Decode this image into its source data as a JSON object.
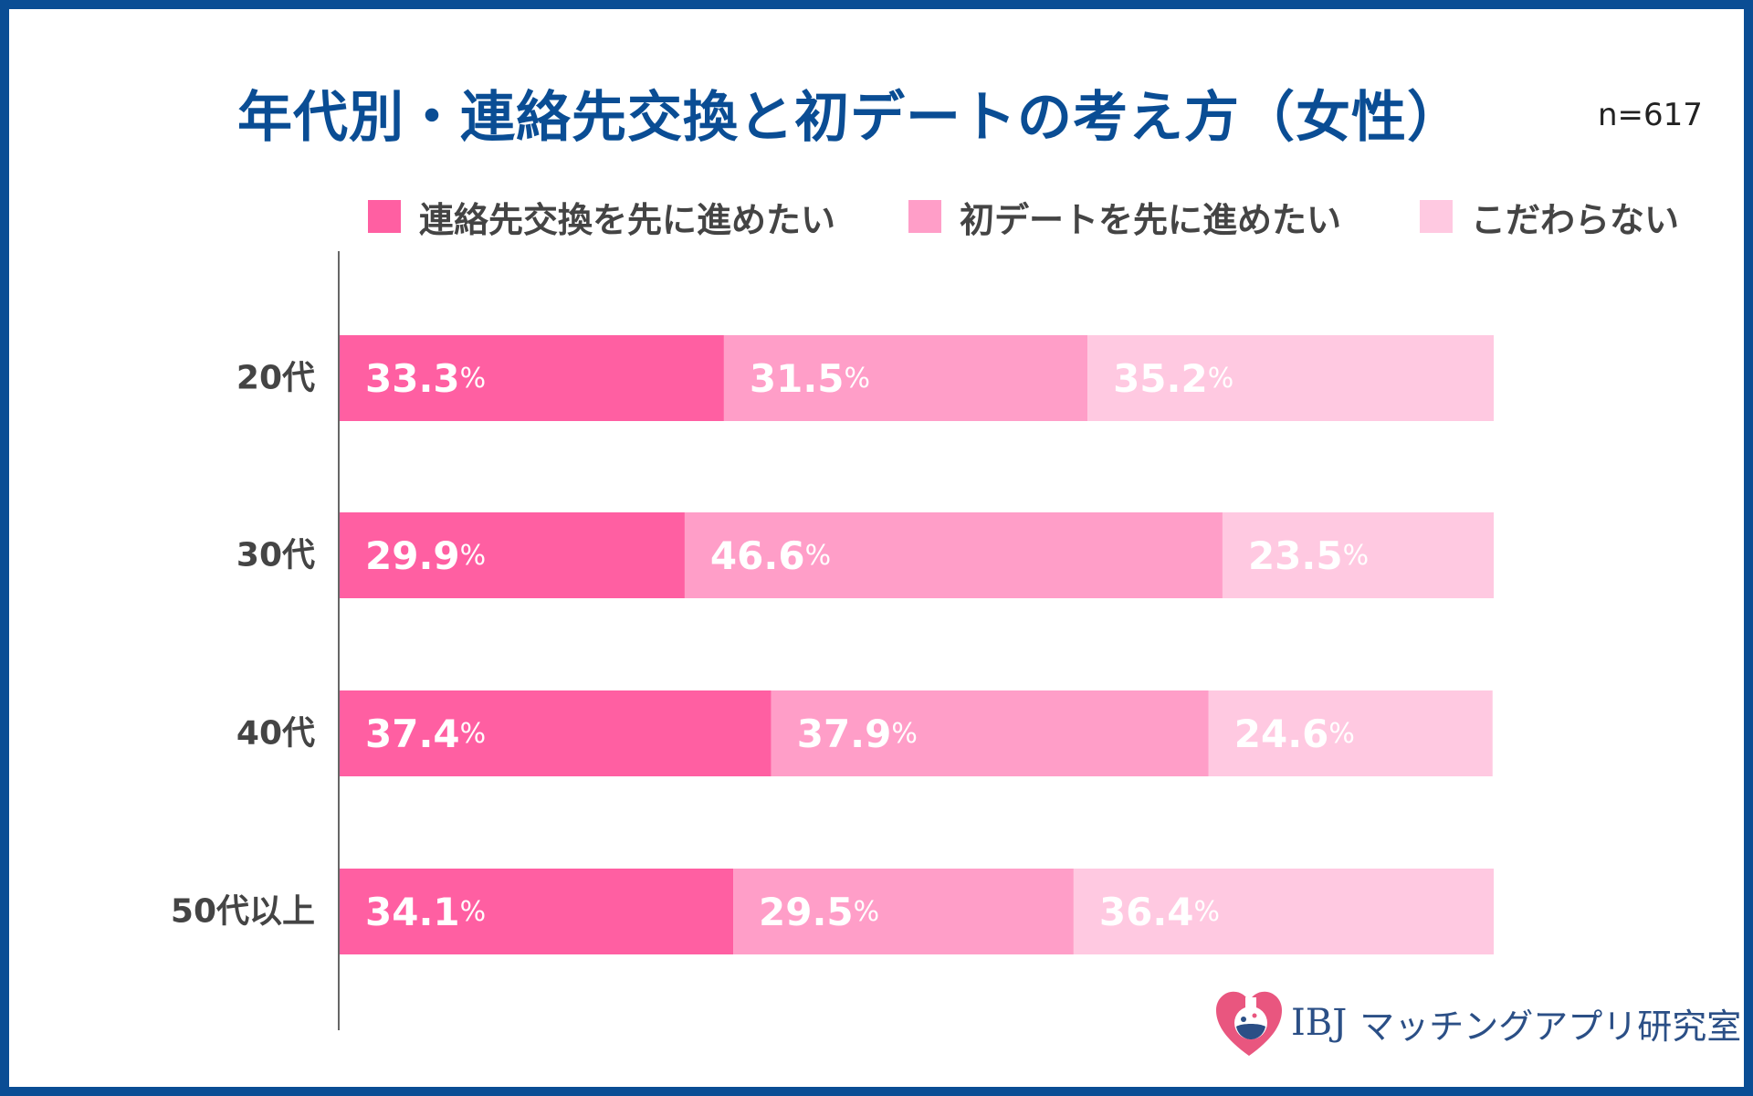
{
  "chart_data": {
    "type": "bar",
    "orientation": "horizontal",
    "stacked": true,
    "title": "年代別・連絡先交換と初デートの考え方（女性）",
    "sample_size": "n=617",
    "categories": [
      "20代",
      "30代",
      "40代",
      "50代以上"
    ],
    "series": [
      {
        "name": "連絡先交換を先に進めたい",
        "color": "#ff5fa2",
        "values": [
          33.3,
          29.9,
          37.4,
          34.1
        ]
      },
      {
        "name": "初デートを先に進めたい",
        "color": "#ff9ec8",
        "values": [
          31.5,
          46.6,
          37.9,
          29.5
        ]
      },
      {
        "name": "こだわらない",
        "color": "#ffc9e1",
        "values": [
          35.2,
          23.5,
          24.6,
          36.4
        ]
      }
    ],
    "value_suffix": "%",
    "xlim": [
      0,
      100
    ],
    "legend": "top",
    "grid": false
  },
  "logo": {
    "brand": "IBJ",
    "text": "マッチングアプリ研究室"
  },
  "colors": {
    "frame": "#0a4d94",
    "title": "#0a4d94",
    "category_label": "#444444",
    "data_label": "#ffffff"
  },
  "icons": {
    "logo": "heart-flask-icon"
  }
}
